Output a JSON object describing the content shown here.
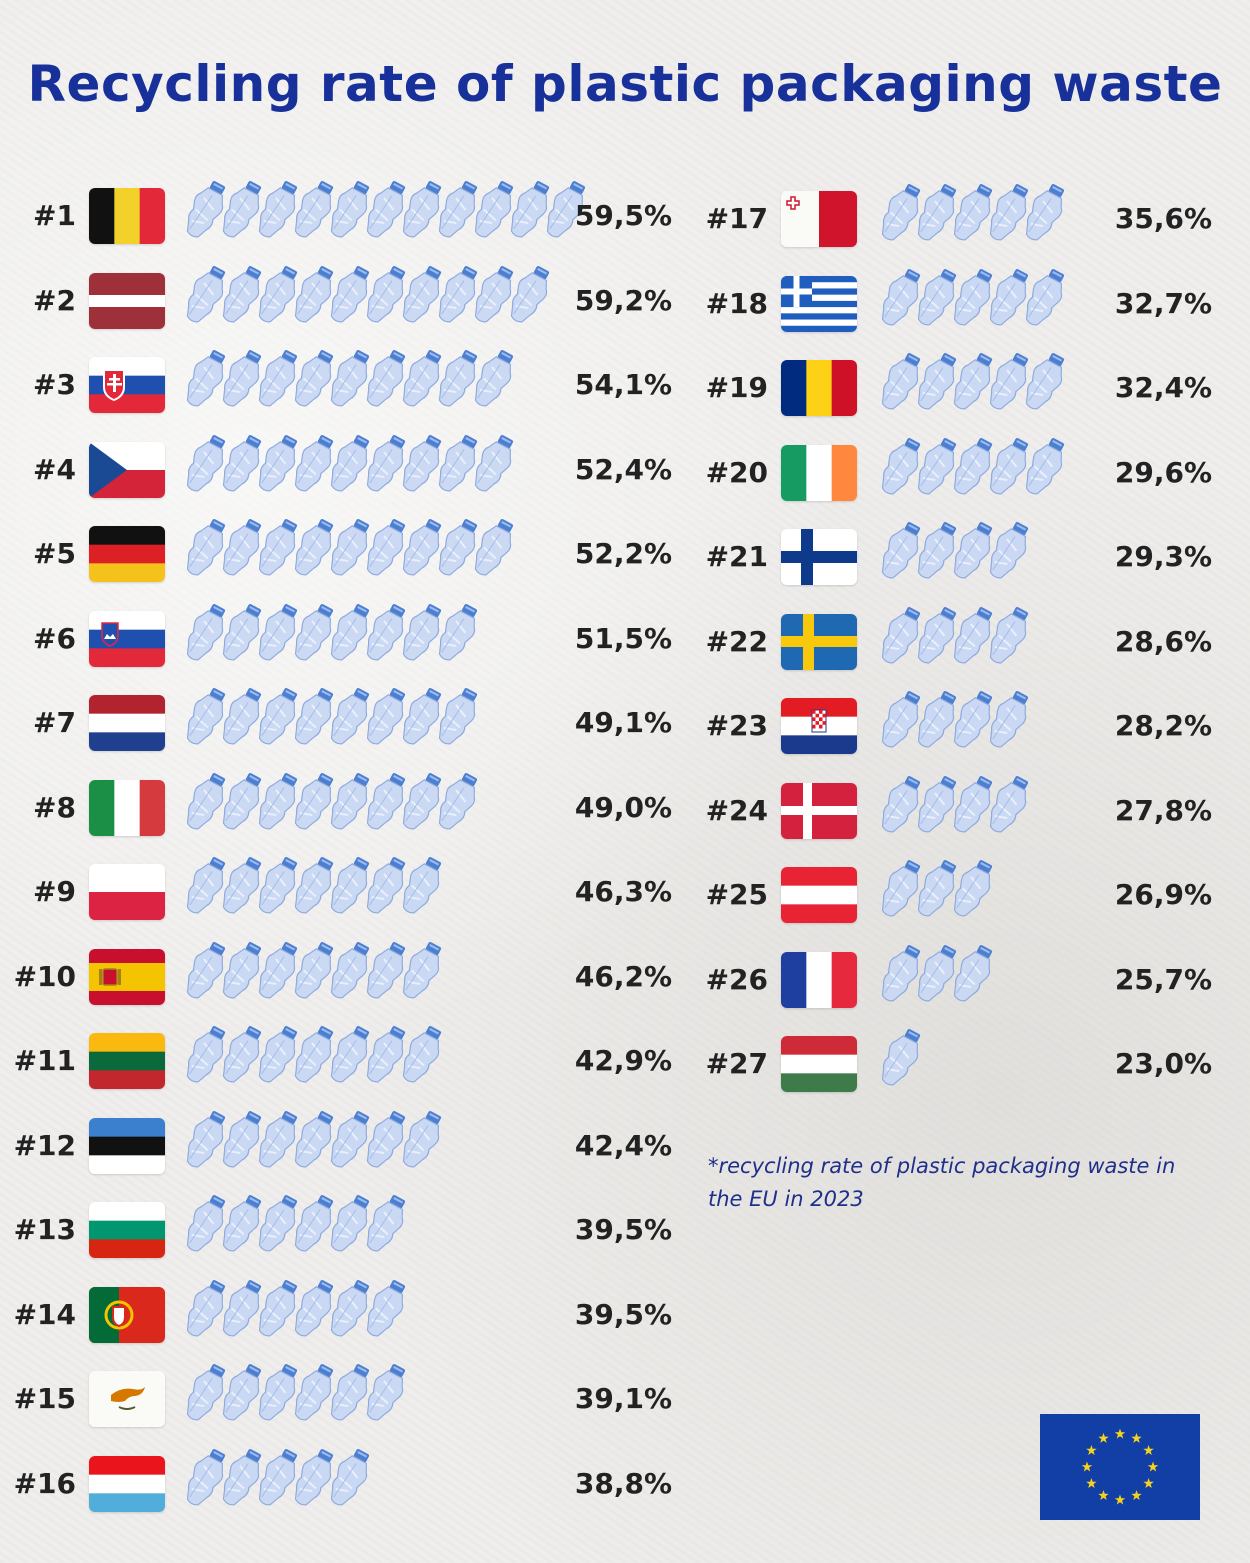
{
  "title": "Recycling rate of plastic packaging waste",
  "footnote": "*recycling rate of plastic packaging waste in the EU in 2023",
  "icons": {
    "bottle": "crushed-plastic-bottle-icon",
    "eu": "eu-flag-icon"
  },
  "colors": {
    "title": "#18309a",
    "bottle": "#b9cdf0",
    "bottle_cap": "#4d7fd1"
  },
  "chart_data": {
    "type": "bar",
    "title": "Recycling rate of plastic packaging waste",
    "unit": "%",
    "rows": [
      {
        "rank": "#1",
        "country": "Belgium",
        "flag": "be",
        "label": "59,5%",
        "value": 59.5,
        "bottles": 11
      },
      {
        "rank": "#2",
        "country": "Latvia",
        "flag": "lv",
        "label": "59,2%",
        "value": 59.2,
        "bottles": 10
      },
      {
        "rank": "#3",
        "country": "Slovakia",
        "flag": "sk",
        "label": "54,1%",
        "value": 54.1,
        "bottles": 9
      },
      {
        "rank": "#4",
        "country": "Czechia",
        "flag": "cz",
        "label": "52,4%",
        "value": 52.4,
        "bottles": 9
      },
      {
        "rank": "#5",
        "country": "Germany",
        "flag": "de",
        "label": "52,2%",
        "value": 52.2,
        "bottles": 9
      },
      {
        "rank": "#6",
        "country": "Slovenia",
        "flag": "si",
        "label": "51,5%",
        "value": 51.5,
        "bottles": 8
      },
      {
        "rank": "#7",
        "country": "Netherlands",
        "flag": "nl",
        "label": "49,1%",
        "value": 49.1,
        "bottles": 8
      },
      {
        "rank": "#8",
        "country": "Italy",
        "flag": "it",
        "label": "49,0%",
        "value": 49.0,
        "bottles": 8
      },
      {
        "rank": "#9",
        "country": "Poland",
        "flag": "pl",
        "label": "46,3%",
        "value": 46.3,
        "bottles": 7
      },
      {
        "rank": "#10",
        "country": "Spain",
        "flag": "es",
        "label": "46,2%",
        "value": 46.2,
        "bottles": 7
      },
      {
        "rank": "#11",
        "country": "Lithuania",
        "flag": "lt",
        "label": "42,9%",
        "value": 42.9,
        "bottles": 7
      },
      {
        "rank": "#12",
        "country": "Estonia",
        "flag": "ee",
        "label": "42,4%",
        "value": 42.4,
        "bottles": 7
      },
      {
        "rank": "#13",
        "country": "Bulgaria",
        "flag": "bg",
        "label": "39,5%",
        "value": 39.5,
        "bottles": 6
      },
      {
        "rank": "#14",
        "country": "Portugal",
        "flag": "pt",
        "label": "39,5%",
        "value": 39.5,
        "bottles": 6
      },
      {
        "rank": "#15",
        "country": "Cyprus",
        "flag": "cy",
        "label": "39,1%",
        "value": 39.1,
        "bottles": 6
      },
      {
        "rank": "#16",
        "country": "Luxembourg",
        "flag": "lu",
        "label": "38,8%",
        "value": 38.8,
        "bottles": 5
      },
      {
        "rank": "#17",
        "country": "Malta",
        "flag": "mt",
        "label": "35,6%",
        "value": 35.6,
        "bottles": 5
      },
      {
        "rank": "#18",
        "country": "Greece",
        "flag": "gr",
        "label": "32,7%",
        "value": 32.7,
        "bottles": 5
      },
      {
        "rank": "#19",
        "country": "Romania",
        "flag": "ro",
        "label": "32,4%",
        "value": 32.4,
        "bottles": 5
      },
      {
        "rank": "#20",
        "country": "Ireland",
        "flag": "ie",
        "label": "29,6%",
        "value": 29.6,
        "bottles": 5
      },
      {
        "rank": "#21",
        "country": "Finland",
        "flag": "fi",
        "label": "29,3%",
        "value": 29.3,
        "bottles": 4
      },
      {
        "rank": "#22",
        "country": "Sweden",
        "flag": "se",
        "label": "28,6%",
        "value": 28.6,
        "bottles": 4
      },
      {
        "rank": "#23",
        "country": "Croatia",
        "flag": "hr",
        "label": "28,2%",
        "value": 28.2,
        "bottles": 4
      },
      {
        "rank": "#24",
        "country": "Denmark",
        "flag": "dk",
        "label": "27,8%",
        "value": 27.8,
        "bottles": 4
      },
      {
        "rank": "#25",
        "country": "Austria",
        "flag": "at",
        "label": "26,9%",
        "value": 26.9,
        "bottles": 3
      },
      {
        "rank": "#26",
        "country": "France",
        "flag": "fr",
        "label": "25,7%",
        "value": 25.7,
        "bottles": 3
      },
      {
        "rank": "#27",
        "country": "Hungary",
        "flag": "hu",
        "label": "23,0%",
        "value": 23.0,
        "bottles": 1
      }
    ]
  }
}
